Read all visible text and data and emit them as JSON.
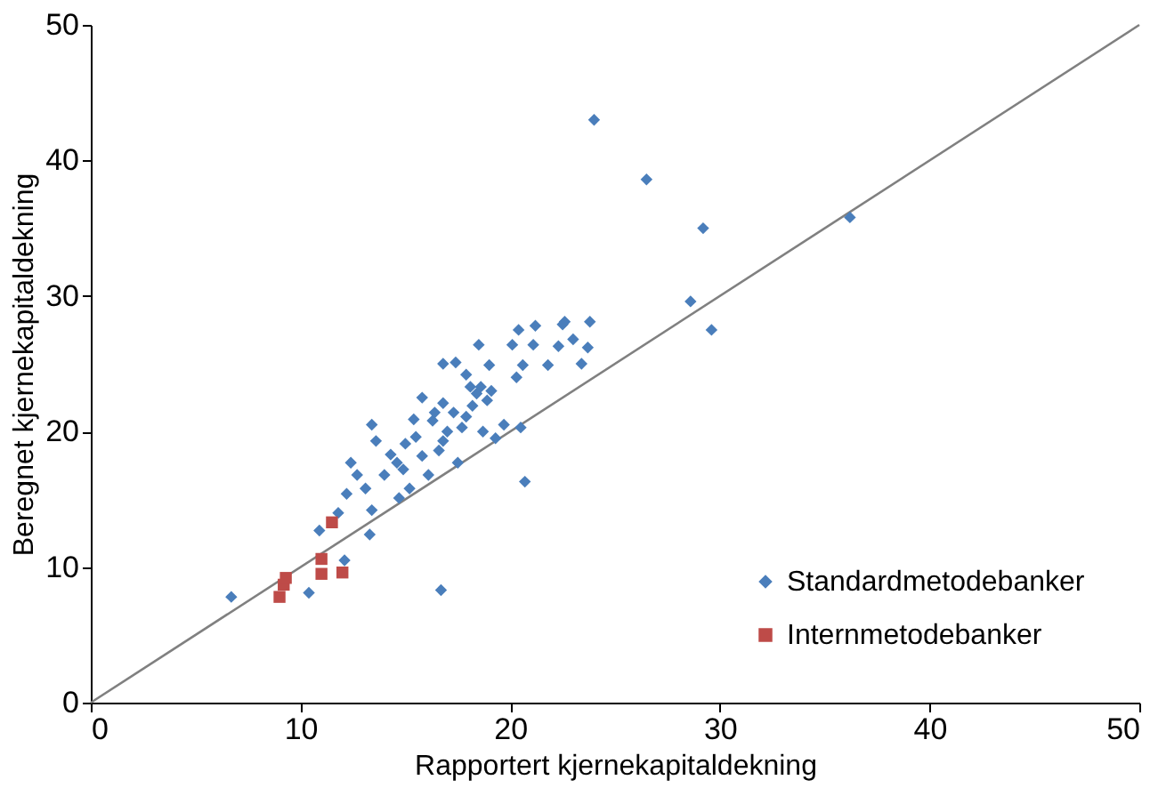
{
  "chart_data": {
    "type": "scatter",
    "xlabel": "Rapportert kjernekapitaldekning",
    "ylabel": "Beregnet kjernekapitaldekning",
    "xlim": [
      0,
      50
    ],
    "ylim": [
      0,
      50
    ],
    "xticks": [
      0,
      10,
      20,
      30,
      40,
      50
    ],
    "yticks": [
      0,
      10,
      20,
      30,
      40,
      50
    ],
    "grid": false,
    "legend": "bottom right",
    "series": [
      {
        "name": "Standardmetodebanker",
        "color": "#4a7ebb",
        "marker": "diamond",
        "x": [
          24,
          26.5,
          29.2,
          36.2,
          28.6,
          29.6,
          16.7,
          20.7,
          6.7,
          10.4,
          23.8,
          22.6,
          21.2,
          23.0,
          23.7,
          22.3,
          20.4,
          20.1,
          18.5,
          23.4,
          21.8,
          20.6,
          20.3,
          19.0,
          16.8,
          17.4,
          15.8,
          18.1,
          18.6,
          18.9,
          18.2,
          17.9,
          19.7,
          20.5,
          19.3,
          18.7,
          17.0,
          16.3,
          15.4,
          13.4,
          13.6,
          12.4,
          14.3,
          15.0,
          15.5,
          16.6,
          17.5,
          16.1,
          15.2,
          14.7,
          13.1,
          12.2,
          13.4,
          11.8,
          10.9,
          13.3,
          12.1,
          14.6,
          14.0,
          14.9,
          15.8,
          16.8,
          17.3,
          17.7,
          18.4,
          19.1,
          17.9,
          16.4,
          16.8,
          12.7,
          21.1,
          22.5
        ],
        "values": [
          43,
          38.6,
          35,
          35.8,
          29.6,
          27.5,
          8.3,
          16.3,
          7.8,
          8.1,
          28.1,
          28.1,
          27.8,
          26.8,
          26.2,
          26.3,
          27.5,
          26.4,
          26.4,
          25.0,
          24.9,
          24.9,
          24.0,
          24.9,
          25.0,
          25.1,
          22.5,
          23.3,
          23.3,
          22.3,
          21.9,
          21.1,
          20.5,
          20.3,
          19.5,
          20.0,
          20.0,
          20.8,
          20.9,
          20.5,
          19.3,
          17.7,
          18.3,
          19.1,
          19.6,
          18.6,
          17.7,
          16.8,
          15.8,
          15.1,
          15.8,
          15.4,
          14.2,
          14.0,
          12.7,
          12.4,
          10.5,
          17.7,
          16.8,
          17.2,
          18.2,
          19.3,
          21.4,
          20.3,
          22.8,
          23.0,
          24.2,
          21.4,
          22.1,
          16.8,
          26.4,
          27.9
        ]
      },
      {
        "name": "Internmetodebanker",
        "color": "#be4b48",
        "marker": "square",
        "x": [
          9.0,
          9.2,
          9.3,
          11.0,
          11.0,
          12.0,
          11.5
        ],
        "values": [
          7.8,
          8.7,
          9.2,
          10.6,
          9.5,
          9.6,
          13.3
        ]
      },
      {
        "type": "line",
        "color": "#808080",
        "line_style": "solid",
        "x": [
          0,
          50
        ],
        "values": [
          0,
          50
        ]
      }
    ]
  }
}
